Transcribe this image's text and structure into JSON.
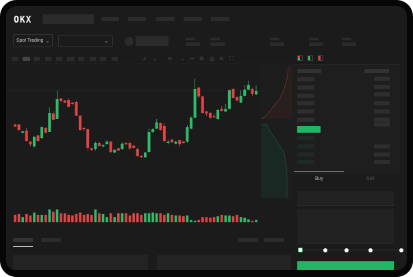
{
  "header": {
    "logo": "OKX"
  },
  "toolbar": {
    "market_selector": "Spot Trading",
    "chevron": "⌄"
  },
  "order_form": {
    "buy_tab": "Buy",
    "sell_tab": "Sell",
    "slider_level": 0
  },
  "colors": {
    "up": "#2ebd6b",
    "down": "#e04646",
    "accent": "#23b566",
    "background": "#1b1b1b"
  },
  "chart_data": {
    "type": "candlestick",
    "candles": [
      [
        68,
        65,
        69,
        64
      ],
      [
        68,
        60,
        69,
        58
      ],
      [
        56,
        58,
        59,
        55
      ],
      [
        59,
        44,
        63,
        43
      ],
      [
        43,
        39,
        44,
        36
      ],
      [
        36,
        50,
        51,
        34
      ],
      [
        52,
        44,
        53,
        43
      ],
      [
        48,
        64,
        65,
        47
      ],
      [
        63,
        56,
        64,
        55
      ],
      [
        57,
        85,
        93,
        57
      ],
      [
        84,
        75,
        87,
        74
      ],
      [
        76,
        105,
        118,
        76
      ],
      [
        106,
        102,
        107,
        101
      ],
      [
        103,
        100,
        104,
        99
      ],
      [
        104,
        94,
        107,
        93
      ],
      [
        100,
        98,
        101,
        97
      ],
      [
        101,
        81,
        102,
        80
      ],
      [
        81,
        60,
        81,
        59
      ],
      [
        63,
        61,
        64,
        58
      ],
      [
        61,
        34,
        62,
        30
      ],
      [
        33,
        31,
        34,
        29
      ],
      [
        32,
        41,
        43,
        30
      ],
      [
        41,
        37,
        43,
        35
      ],
      [
        36,
        38,
        39,
        34
      ],
      [
        39,
        43,
        45,
        39
      ],
      [
        43,
        28,
        44,
        26
      ],
      [
        27,
        31,
        32,
        26
      ],
      [
        33,
        30,
        34,
        29
      ],
      [
        32,
        40,
        42,
        31
      ],
      [
        41,
        39,
        42,
        38
      ],
      [
        41,
        33,
        42,
        31
      ],
      [
        37,
        34,
        38,
        33
      ],
      [
        32,
        22,
        34,
        21
      ],
      [
        22,
        20,
        23,
        19
      ],
      [
        20,
        27,
        28,
        19
      ],
      [
        28,
        57,
        62,
        27
      ],
      [
        57,
        61,
        63,
        56
      ],
      [
        62,
        71,
        76,
        61
      ],
      [
        70,
        60,
        71,
        59
      ],
      [
        66,
        44,
        70,
        42
      ],
      [
        41,
        43,
        45,
        39
      ],
      [
        46,
        42,
        47,
        41
      ],
      [
        40,
        43,
        44,
        39
      ],
      [
        45,
        39,
        46,
        35
      ],
      [
        43,
        41,
        44,
        40
      ],
      [
        43,
        64,
        67,
        41
      ],
      [
        62,
        78,
        80,
        61
      ],
      [
        78,
        120,
        135,
        77
      ],
      [
        122,
        109,
        123,
        106
      ],
      [
        109,
        85,
        110,
        84
      ],
      [
        87,
        84,
        88,
        80
      ],
      [
        85,
        78,
        86,
        76
      ],
      [
        80,
        79,
        84,
        78
      ],
      [
        76,
        89,
        91,
        75
      ],
      [
        91,
        88,
        95,
        87
      ],
      [
        87,
        91,
        98,
        86
      ],
      [
        91,
        118,
        119,
        90
      ],
      [
        120,
        107,
        121,
        106
      ],
      [
        108,
        103,
        109,
        102
      ],
      [
        100,
        110,
        118,
        99
      ],
      [
        110,
        119,
        126,
        109
      ],
      [
        119,
        126,
        132,
        118
      ],
      [
        120,
        113,
        122,
        110
      ],
      [
        112,
        117,
        125,
        111
      ]
    ],
    "candle_format": [
      "open",
      "close",
      "high",
      "low"
    ],
    "volume": [
      10,
      11,
      7,
      11,
      9,
      13,
      10,
      10,
      10,
      17,
      14,
      17,
      12,
      12,
      10,
      9,
      11,
      13,
      10,
      11,
      10,
      17,
      12,
      11,
      7,
      12,
      7,
      12,
      12,
      12,
      9,
      12,
      12,
      10,
      12,
      12,
      13,
      12,
      12,
      10,
      12,
      10,
      9,
      9,
      8,
      9,
      3,
      2,
      3,
      7,
      7,
      6,
      7,
      8,
      10,
      9,
      9,
      8,
      10,
      7,
      6,
      4,
      2,
      3
    ]
  }
}
